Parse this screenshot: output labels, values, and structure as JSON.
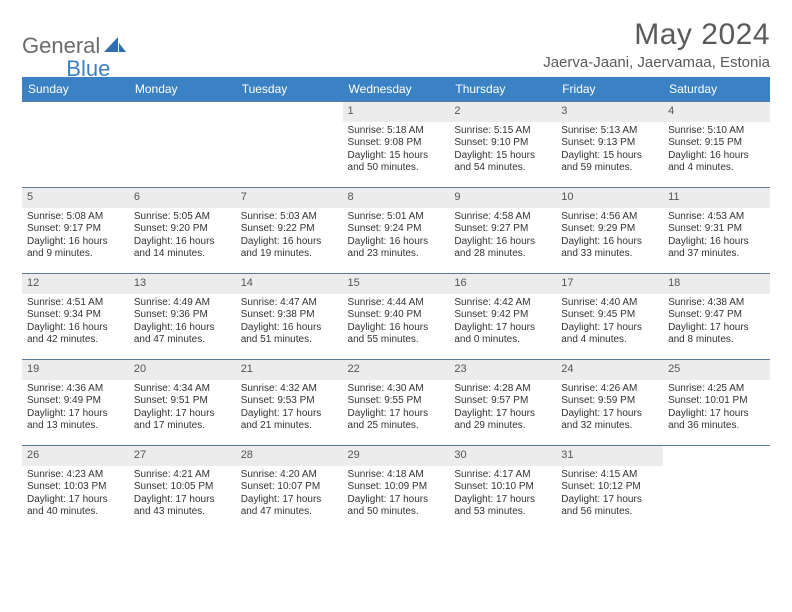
{
  "logo": {
    "part1": "General",
    "part2": "Blue"
  },
  "title": "May 2024",
  "location": "Jaerva-Jaani, Jaervamaa, Estonia",
  "colors": {
    "header_bg": "#3b82c4",
    "header_fg": "#ffffff",
    "daynum_bg": "#ececec",
    "text": "#333333",
    "logo_gray": "#6b6b6b",
    "logo_blue": "#3b7fc4",
    "rule": "#5a7a9a"
  },
  "day_names": [
    "Sunday",
    "Monday",
    "Tuesday",
    "Wednesday",
    "Thursday",
    "Friday",
    "Saturday"
  ],
  "weeks": [
    [
      null,
      null,
      null,
      {
        "n": "1",
        "sr": "5:18 AM",
        "ss": "9:08 PM",
        "dl": "15 hours and 50 minutes."
      },
      {
        "n": "2",
        "sr": "5:15 AM",
        "ss": "9:10 PM",
        "dl": "15 hours and 54 minutes."
      },
      {
        "n": "3",
        "sr": "5:13 AM",
        "ss": "9:13 PM",
        "dl": "15 hours and 59 minutes."
      },
      {
        "n": "4",
        "sr": "5:10 AM",
        "ss": "9:15 PM",
        "dl": "16 hours and 4 minutes."
      }
    ],
    [
      {
        "n": "5",
        "sr": "5:08 AM",
        "ss": "9:17 PM",
        "dl": "16 hours and 9 minutes."
      },
      {
        "n": "6",
        "sr": "5:05 AM",
        "ss": "9:20 PM",
        "dl": "16 hours and 14 minutes."
      },
      {
        "n": "7",
        "sr": "5:03 AM",
        "ss": "9:22 PM",
        "dl": "16 hours and 19 minutes."
      },
      {
        "n": "8",
        "sr": "5:01 AM",
        "ss": "9:24 PM",
        "dl": "16 hours and 23 minutes."
      },
      {
        "n": "9",
        "sr": "4:58 AM",
        "ss": "9:27 PM",
        "dl": "16 hours and 28 minutes."
      },
      {
        "n": "10",
        "sr": "4:56 AM",
        "ss": "9:29 PM",
        "dl": "16 hours and 33 minutes."
      },
      {
        "n": "11",
        "sr": "4:53 AM",
        "ss": "9:31 PM",
        "dl": "16 hours and 37 minutes."
      }
    ],
    [
      {
        "n": "12",
        "sr": "4:51 AM",
        "ss": "9:34 PM",
        "dl": "16 hours and 42 minutes."
      },
      {
        "n": "13",
        "sr": "4:49 AM",
        "ss": "9:36 PM",
        "dl": "16 hours and 47 minutes."
      },
      {
        "n": "14",
        "sr": "4:47 AM",
        "ss": "9:38 PM",
        "dl": "16 hours and 51 minutes."
      },
      {
        "n": "15",
        "sr": "4:44 AM",
        "ss": "9:40 PM",
        "dl": "16 hours and 55 minutes."
      },
      {
        "n": "16",
        "sr": "4:42 AM",
        "ss": "9:42 PM",
        "dl": "17 hours and 0 minutes."
      },
      {
        "n": "17",
        "sr": "4:40 AM",
        "ss": "9:45 PM",
        "dl": "17 hours and 4 minutes."
      },
      {
        "n": "18",
        "sr": "4:38 AM",
        "ss": "9:47 PM",
        "dl": "17 hours and 8 minutes."
      }
    ],
    [
      {
        "n": "19",
        "sr": "4:36 AM",
        "ss": "9:49 PM",
        "dl": "17 hours and 13 minutes."
      },
      {
        "n": "20",
        "sr": "4:34 AM",
        "ss": "9:51 PM",
        "dl": "17 hours and 17 minutes."
      },
      {
        "n": "21",
        "sr": "4:32 AM",
        "ss": "9:53 PM",
        "dl": "17 hours and 21 minutes."
      },
      {
        "n": "22",
        "sr": "4:30 AM",
        "ss": "9:55 PM",
        "dl": "17 hours and 25 minutes."
      },
      {
        "n": "23",
        "sr": "4:28 AM",
        "ss": "9:57 PM",
        "dl": "17 hours and 29 minutes."
      },
      {
        "n": "24",
        "sr": "4:26 AM",
        "ss": "9:59 PM",
        "dl": "17 hours and 32 minutes."
      },
      {
        "n": "25",
        "sr": "4:25 AM",
        "ss": "10:01 PM",
        "dl": "17 hours and 36 minutes."
      }
    ],
    [
      {
        "n": "26",
        "sr": "4:23 AM",
        "ss": "10:03 PM",
        "dl": "17 hours and 40 minutes."
      },
      {
        "n": "27",
        "sr": "4:21 AM",
        "ss": "10:05 PM",
        "dl": "17 hours and 43 minutes."
      },
      {
        "n": "28",
        "sr": "4:20 AM",
        "ss": "10:07 PM",
        "dl": "17 hours and 47 minutes."
      },
      {
        "n": "29",
        "sr": "4:18 AM",
        "ss": "10:09 PM",
        "dl": "17 hours and 50 minutes."
      },
      {
        "n": "30",
        "sr": "4:17 AM",
        "ss": "10:10 PM",
        "dl": "17 hours and 53 minutes."
      },
      {
        "n": "31",
        "sr": "4:15 AM",
        "ss": "10:12 PM",
        "dl": "17 hours and 56 minutes."
      },
      null
    ]
  ],
  "labels": {
    "sunrise": "Sunrise:",
    "sunset": "Sunset:",
    "daylight": "Daylight:"
  }
}
